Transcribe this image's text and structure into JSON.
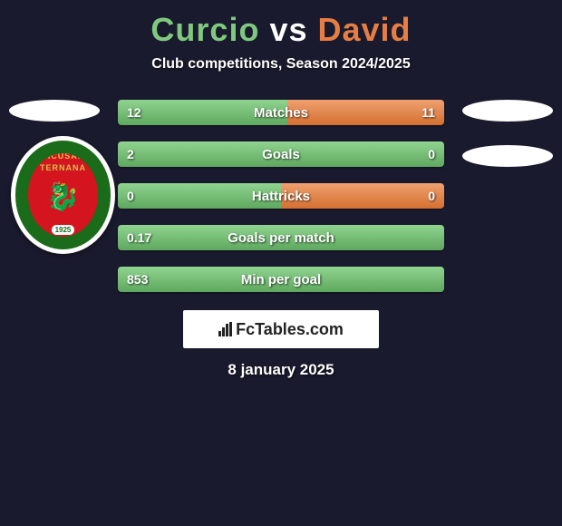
{
  "title": {
    "player1": "Curcio",
    "vs": "vs",
    "player2": "David"
  },
  "subtitle": "Club competitions, Season 2024/2025",
  "colors": {
    "player1_bar": "#7fc97f",
    "player2_bar": "#e67e44",
    "background": "#1a1a2e",
    "text": "#ffffff"
  },
  "logo": {
    "line1": "UNICUSANO",
    "line2": "TERNANA",
    "year": "1925",
    "ring_color": "#1a6b1a",
    "center_color": "#d4141e",
    "accent_color": "#d4c24a"
  },
  "stats": [
    {
      "label": "Matches",
      "v1": "12",
      "v2": "11",
      "p1_pct": 52
    },
    {
      "label": "Goals",
      "v1": "2",
      "v2": "0",
      "p1_pct": 100
    },
    {
      "label": "Hattricks",
      "v1": "0",
      "v2": "0",
      "p1_pct": 50
    },
    {
      "label": "Goals per match",
      "v1": "0.17",
      "v2": "",
      "p1_pct": 100
    },
    {
      "label": "Min per goal",
      "v1": "853",
      "v2": "",
      "p1_pct": 100
    }
  ],
  "watermark": "FcTables.com",
  "date": "8 january 2025"
}
